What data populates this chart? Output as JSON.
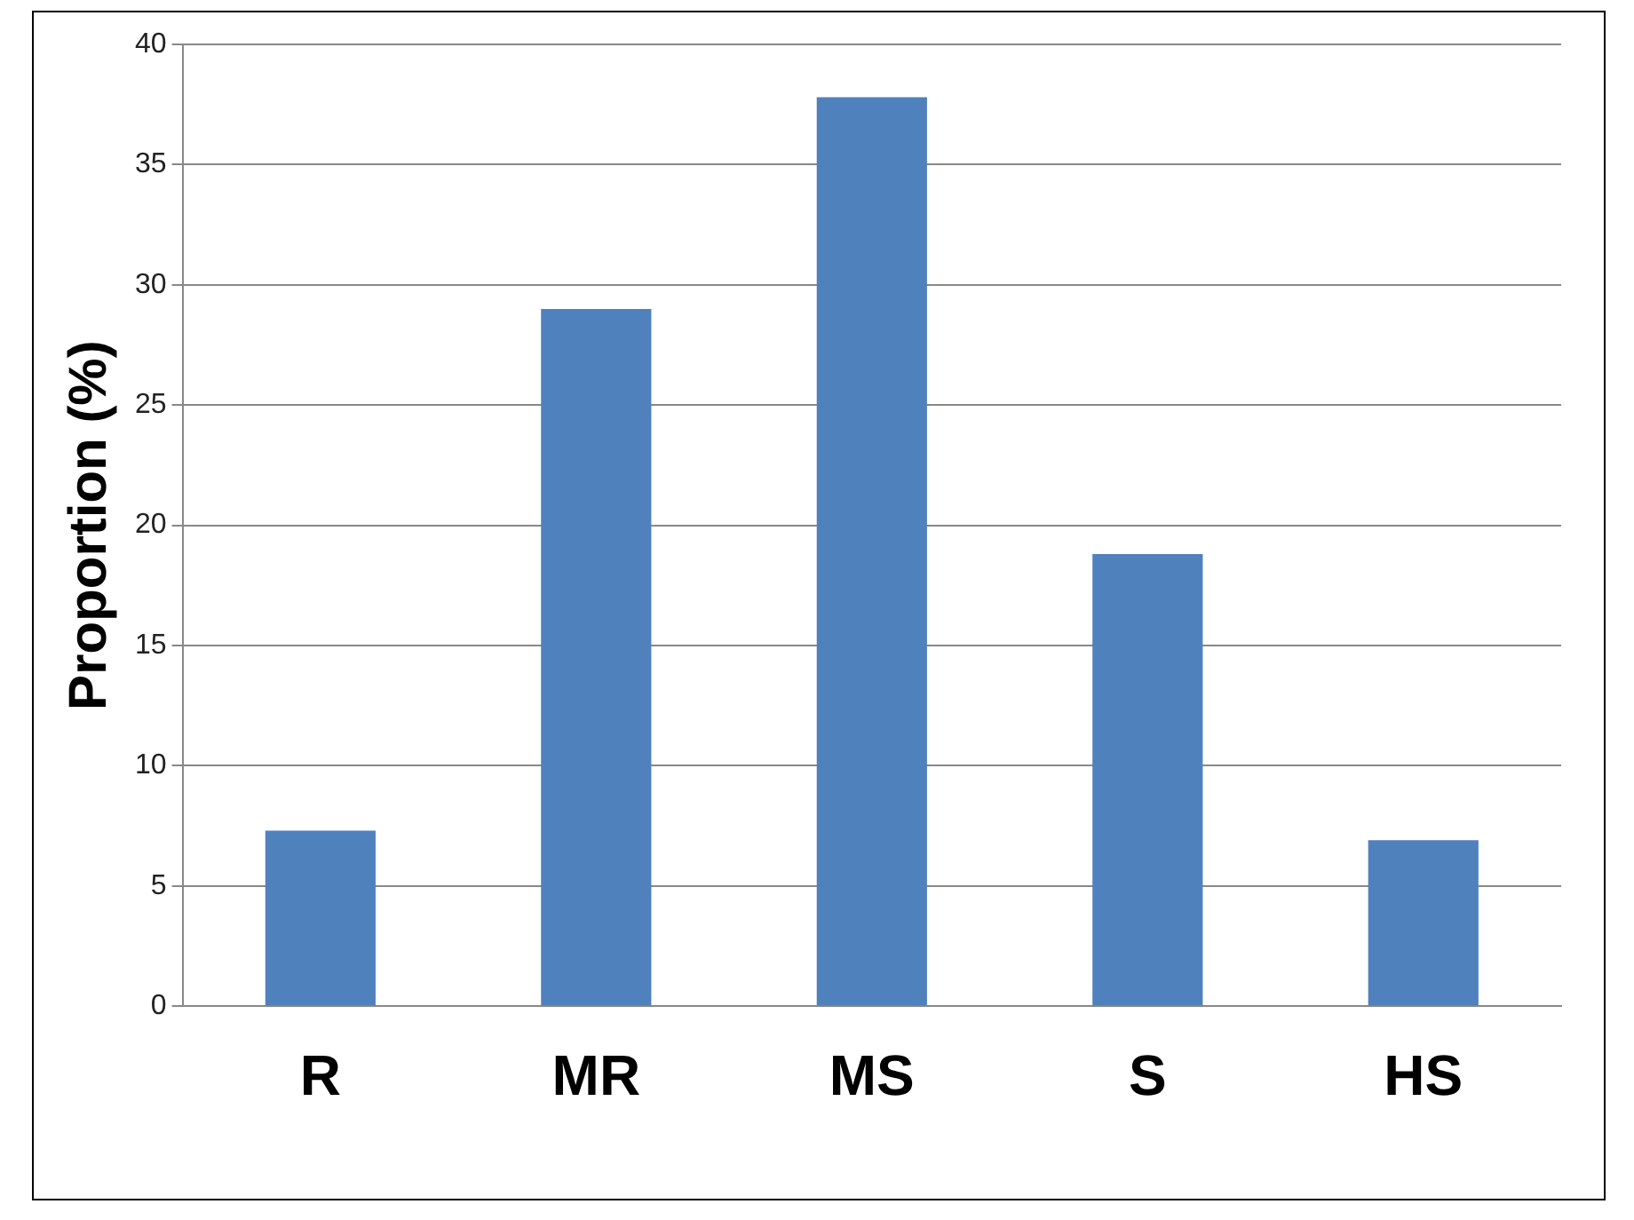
{
  "chart_data": {
    "type": "bar",
    "ylabel": "Proportion (%)",
    "categories": [
      "R",
      "MR",
      "MS",
      "S",
      "HS"
    ],
    "values": [
      7.3,
      29.0,
      37.8,
      18.8,
      6.9
    ],
    "color": "#4f81bd",
    "ylim": [
      0,
      40
    ],
    "yticks": [
      0,
      5,
      10,
      15,
      20,
      25,
      30,
      35,
      40
    ],
    "grid": "y",
    "legend": false
  }
}
